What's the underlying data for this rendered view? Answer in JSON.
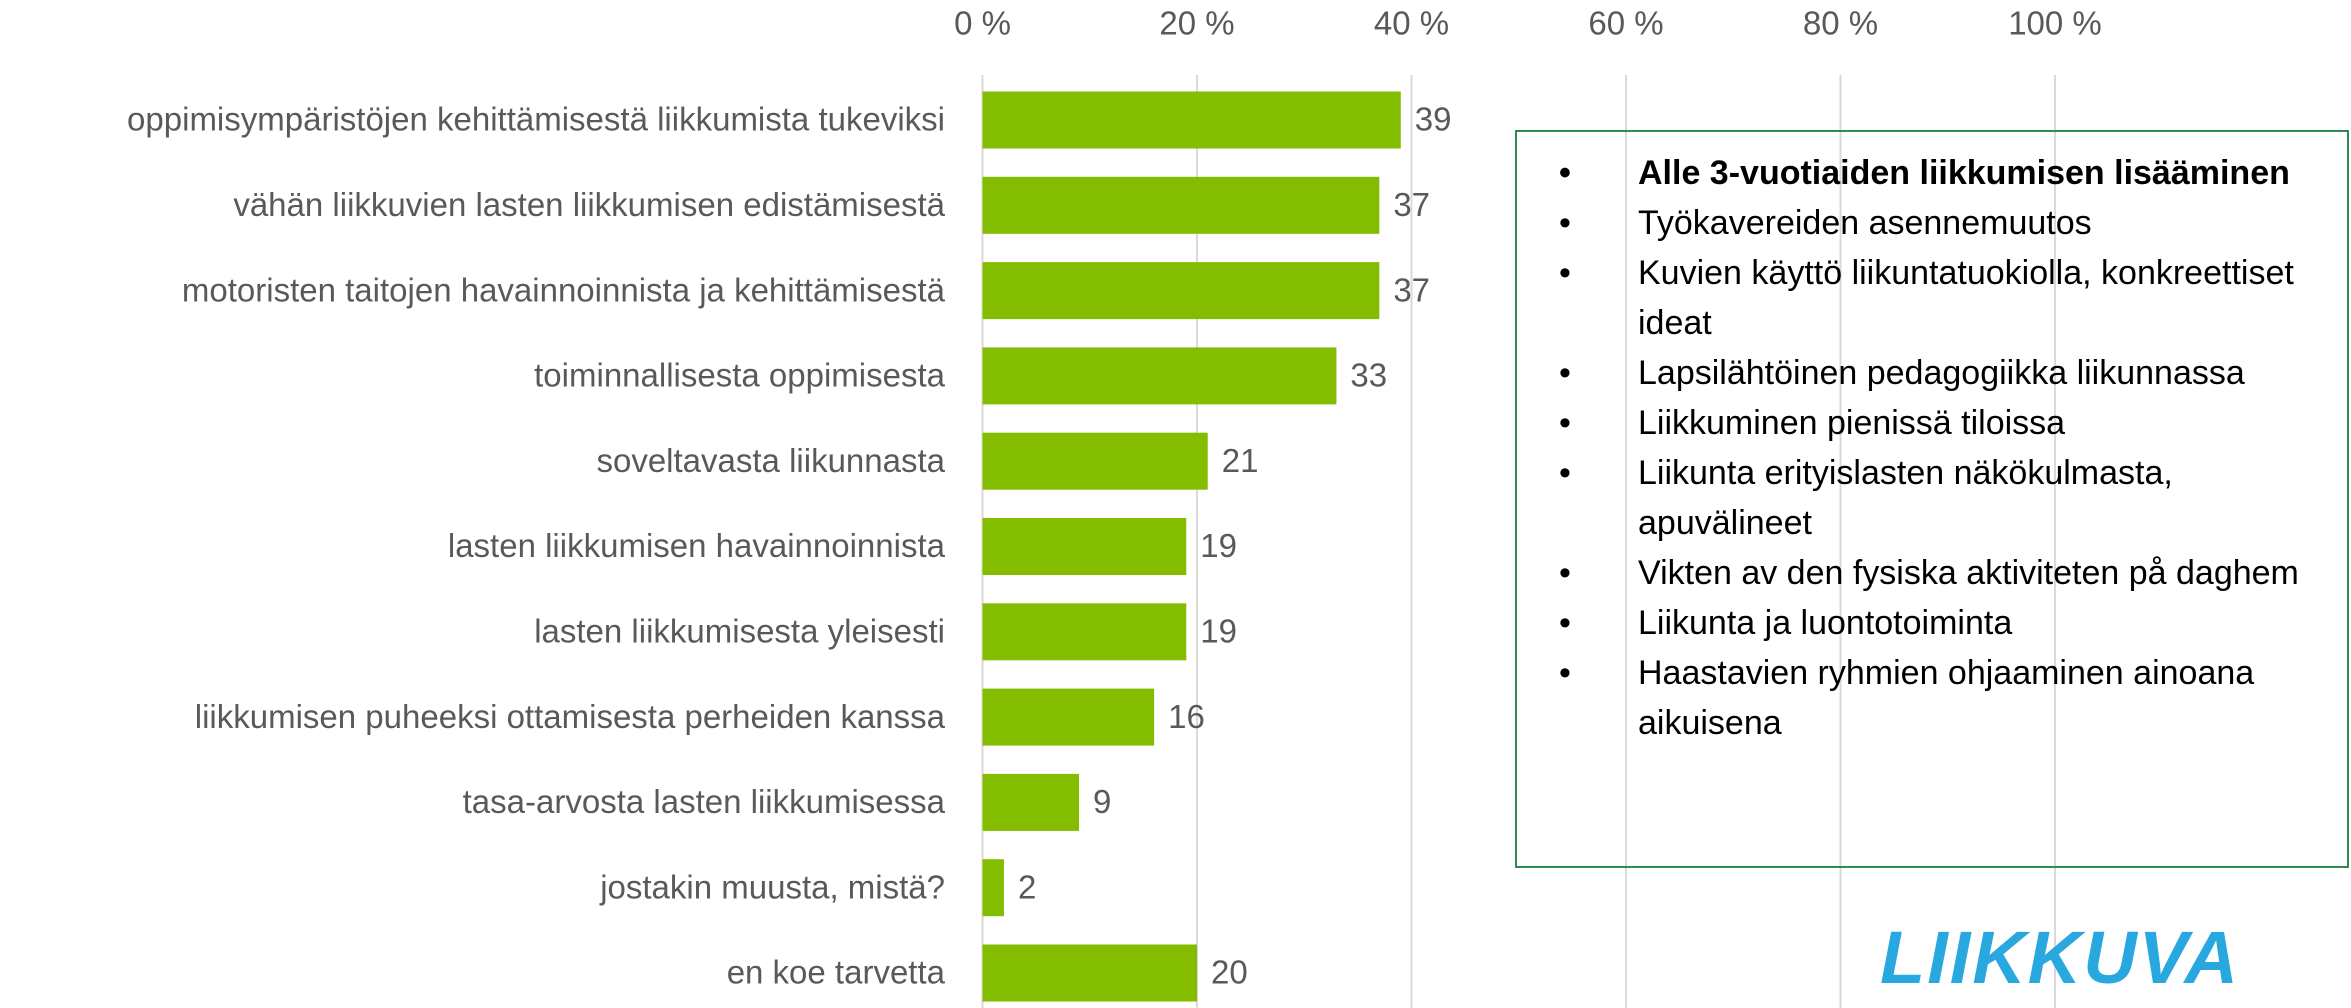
{
  "chart_data": {
    "type": "bar",
    "orientation": "horizontal",
    "categories": [
      "oppimisympäristöjen kehittämisestä liikkumista tukeviksi",
      "vähän liikkuvien lasten liikkumisen edistämisestä",
      "motoristen taitojen havainnoinnista ja kehittämisestä",
      "toiminnallisesta oppimisesta",
      "soveltavasta liikunnasta",
      "lasten liikkumisen havainnoinnista",
      "lasten liikkumisesta yleisesti",
      "liikkumisen puheeksi ottamisesta perheiden kanssa",
      "tasa-arvosta lasten liikkumisessa",
      "jostakin muusta, mistä?",
      "en koe tarvetta"
    ],
    "values": [
      39,
      37,
      37,
      33,
      21,
      19,
      19,
      16,
      9,
      2,
      20
    ],
    "color": "#84bd00",
    "xlim": [
      0,
      100
    ],
    "xticks": [
      {
        "value": 0,
        "label": "0 %"
      },
      {
        "value": 20,
        "label": "20 %"
      },
      {
        "value": 40,
        "label": "40 %"
      },
      {
        "value": 60,
        "label": "60 %"
      },
      {
        "value": 80,
        "label": "80 %"
      },
      {
        "value": 100,
        "label": "100 %"
      }
    ],
    "grid": true
  },
  "text_box": {
    "items": [
      "Alle 3-vuotiaiden liikkumisen lisääminen",
      "Työkavereiden asennemuutos",
      "Kuvien käyttö liikuntatuokiolla, konkreettiset ideat",
      "Lapsilähtöinen pedagogiikka liikunnassa",
      "Liikkuminen pienissä tiloissa",
      "Liikunta erityislasten näkökulmasta, apuvälineet",
      "Vikten av den fysiska aktiviteten på daghem",
      "Liikunta ja luontotoiminta",
      "Haastavien ryhmien ohjaaminen ainoana aikuisena"
    ]
  },
  "logo": "LIIKKUVA"
}
